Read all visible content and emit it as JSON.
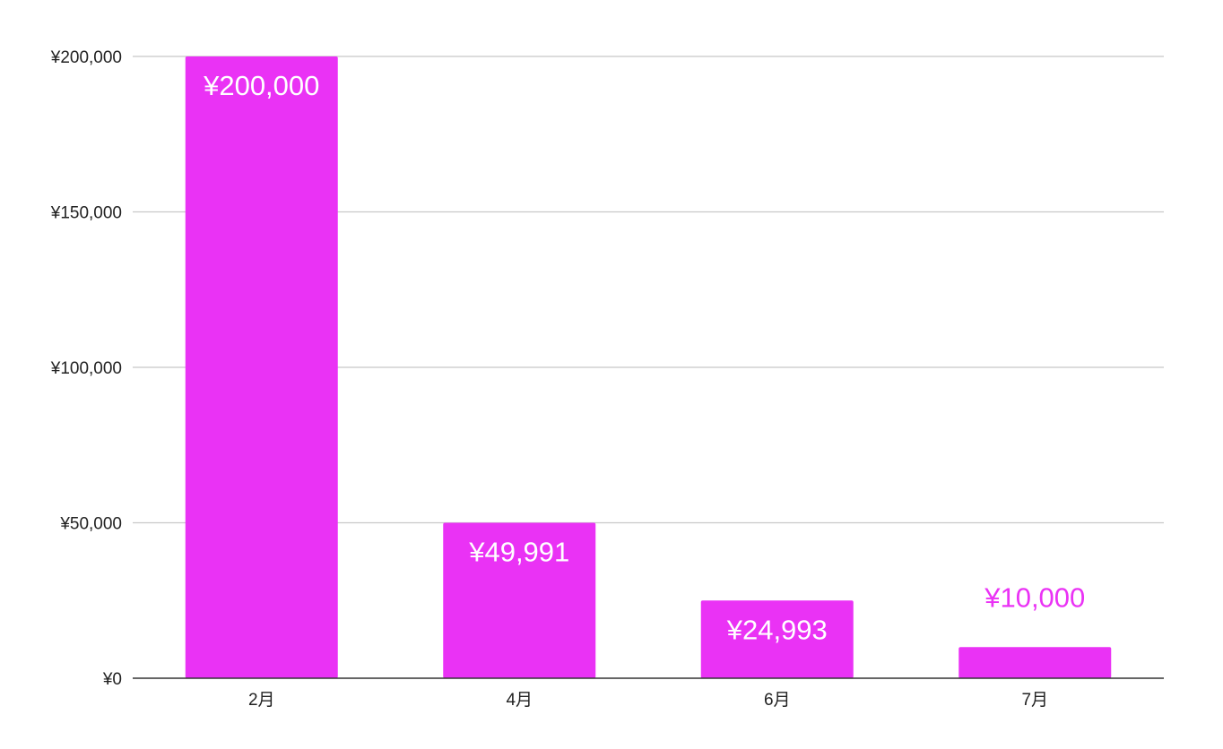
{
  "chart_data": {
    "type": "bar",
    "title": "",
    "xlabel": "",
    "ylabel": "",
    "categories": [
      "2月",
      "4月",
      "6月",
      "7月"
    ],
    "values": [
      200000,
      49991,
      24993,
      10000
    ],
    "value_labels": [
      "¥200,000",
      "¥49,991",
      "¥24,993",
      "¥10,000"
    ],
    "ylim": [
      0,
      200000
    ],
    "yticks": [
      0,
      50000,
      100000,
      150000,
      200000
    ],
    "ytick_labels": [
      "¥0",
      "¥50,000",
      "¥100,000",
      "¥150,000",
      "¥200,000"
    ],
    "grid": true,
    "legend": "none",
    "colors": {
      "bar": "#ea32f5",
      "label_inside": "#ffffff",
      "label_outside": "#ea32f5",
      "grid": "#c8c8c8",
      "axis": "#333333"
    }
  }
}
